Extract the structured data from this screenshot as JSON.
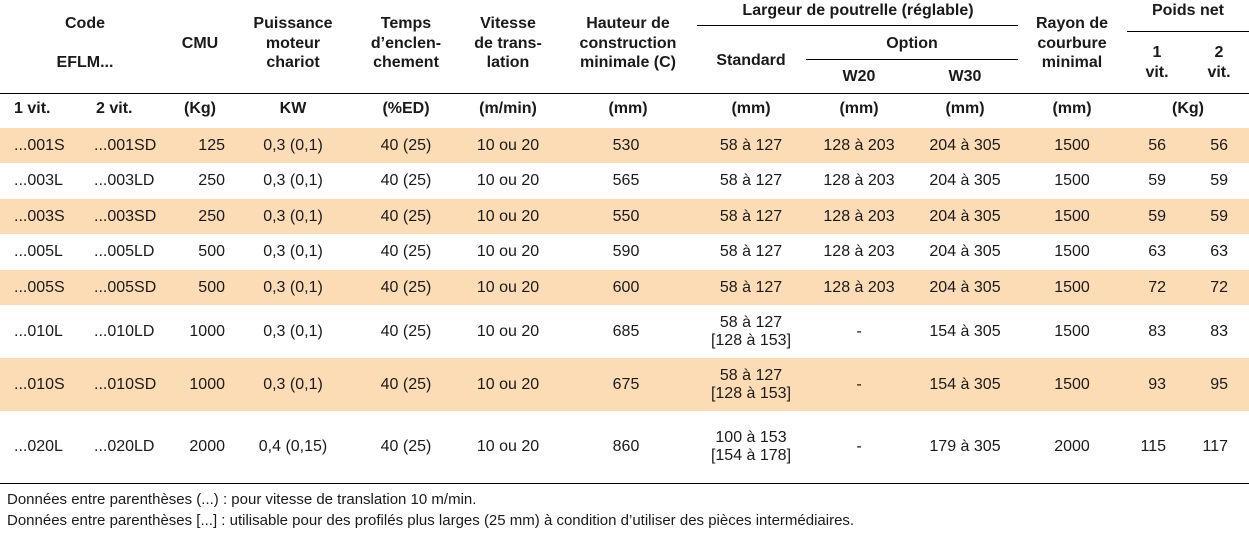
{
  "headers": {
    "code": [
      "Code",
      "EFLM..."
    ],
    "cmu": "CMU",
    "puissance": [
      "Puissance",
      "moteur",
      "chariot"
    ],
    "temps": [
      "Temps",
      "d’enclen-",
      "chement"
    ],
    "vitesse": [
      "Vitesse",
      "de trans-",
      "lation"
    ],
    "hauteur": [
      "Hauteur de",
      "construction",
      "minimale (C)"
    ],
    "largeur": "Largeur de poutrelle (réglable)",
    "standard": "Standard",
    "option": "Option",
    "w20": "W20",
    "w30": "W30",
    "rayon": [
      "Rayon de",
      "courbure",
      "minimal"
    ],
    "poids": "Poids net",
    "poids_1": [
      "1",
      "vit."
    ],
    "poids_2": [
      "2",
      "vit."
    ]
  },
  "units": {
    "code1": "1 vit.",
    "code2": "2 vit.",
    "cmu": "(Kg)",
    "puissance": "KW",
    "temps": "(%ED)",
    "vitesse": "(m/min)",
    "hauteur": "(mm)",
    "standard": "(mm)",
    "w20": "(mm)",
    "w30": "(mm)",
    "rayon": "(mm)",
    "poids": "(Kg)"
  },
  "rows": [
    {
      "code1": "...001S",
      "code2": "...001SD",
      "cmu": "125",
      "kw": "0,3 (0,1)",
      "ed": "40 (25)",
      "vit": "10 ou 20",
      "haut": "530",
      "std1": "58 à 127",
      "std2": "",
      "w20": "128 à 203",
      "w30": "204 à 305",
      "rayon": "1500",
      "p1": "56",
      "p2": "56"
    },
    {
      "code1": "...003L",
      "code2": "...003LD",
      "cmu": "250",
      "kw": "0,3 (0,1)",
      "ed": "40 (25)",
      "vit": "10 ou 20",
      "haut": "565",
      "std1": "58 à 127",
      "std2": "",
      "w20": "128 à 203",
      "w30": "204 à 305",
      "rayon": "1500",
      "p1": "59",
      "p2": "59"
    },
    {
      "code1": "...003S",
      "code2": "...003SD",
      "cmu": "250",
      "kw": "0,3 (0,1)",
      "ed": "40 (25)",
      "vit": "10 ou 20",
      "haut": "550",
      "std1": "58 à 127",
      "std2": "",
      "w20": "128 à 203",
      "w30": "204 à 305",
      "rayon": "1500",
      "p1": "59",
      "p2": "59"
    },
    {
      "code1": "...005L",
      "code2": "...005LD",
      "cmu": "500",
      "kw": "0,3 (0,1)",
      "ed": "40 (25)",
      "vit": "10 ou 20",
      "haut": "590",
      "std1": "58 à 127",
      "std2": "",
      "w20": "128 à 203",
      "w30": "204 à 305",
      "rayon": "1500",
      "p1": "63",
      "p2": "63"
    },
    {
      "code1": "...005S",
      "code2": "...005SD",
      "cmu": "500",
      "kw": "0,3 (0,1)",
      "ed": "40 (25)",
      "vit": "10 ou 20",
      "haut": "600",
      "std1": "58 à 127",
      "std2": "",
      "w20": "128 à 203",
      "w30": "204 à 305",
      "rayon": "1500",
      "p1": "72",
      "p2": "72"
    },
    {
      "code1": "...010L",
      "code2": "...010LD",
      "cmu": "1000",
      "kw": "0,3 (0,1)",
      "ed": "40 (25)",
      "vit": "10 ou 20",
      "haut": "685",
      "std1": "58 à 127",
      "std2": "[128 à 153]",
      "w20": "-",
      "w30": "154 à 305",
      "rayon": "1500",
      "p1": "83",
      "p2": "83"
    },
    {
      "code1": "...010S",
      "code2": "...010SD",
      "cmu": "1000",
      "kw": "0,3 (0,1)",
      "ed": "40 (25)",
      "vit": "10 ou 20",
      "haut": "675",
      "std1": "58 à 127",
      "std2": "[128 à 153]",
      "w20": "-",
      "w30": "154 à 305",
      "rayon": "1500",
      "p1": "93",
      "p2": "95"
    },
    {
      "code1": "...020L",
      "code2": "...020LD",
      "cmu": "2000",
      "kw": "0,4 (0,15)",
      "ed": "40 (25)",
      "vit": "10 ou 20",
      "haut": "860",
      "std1": "100 à 153",
      "std2": "[154 à 178]",
      "w20": "-",
      "w30": "179 à 305",
      "rayon": "2000",
      "p1": "115",
      "p2": "117"
    }
  ],
  "notes": [
    "Données entre parenthèses (...) : pour vitesse de translation 10 m/min.",
    "Données entre parenthèses [...] : utilisable pour des profilés plus larges (25 mm) à condition d’utiliser des pièces intermédiaires."
  ],
  "colors": {
    "row_shade": "#fcdcb5",
    "rule": "#000000"
  }
}
